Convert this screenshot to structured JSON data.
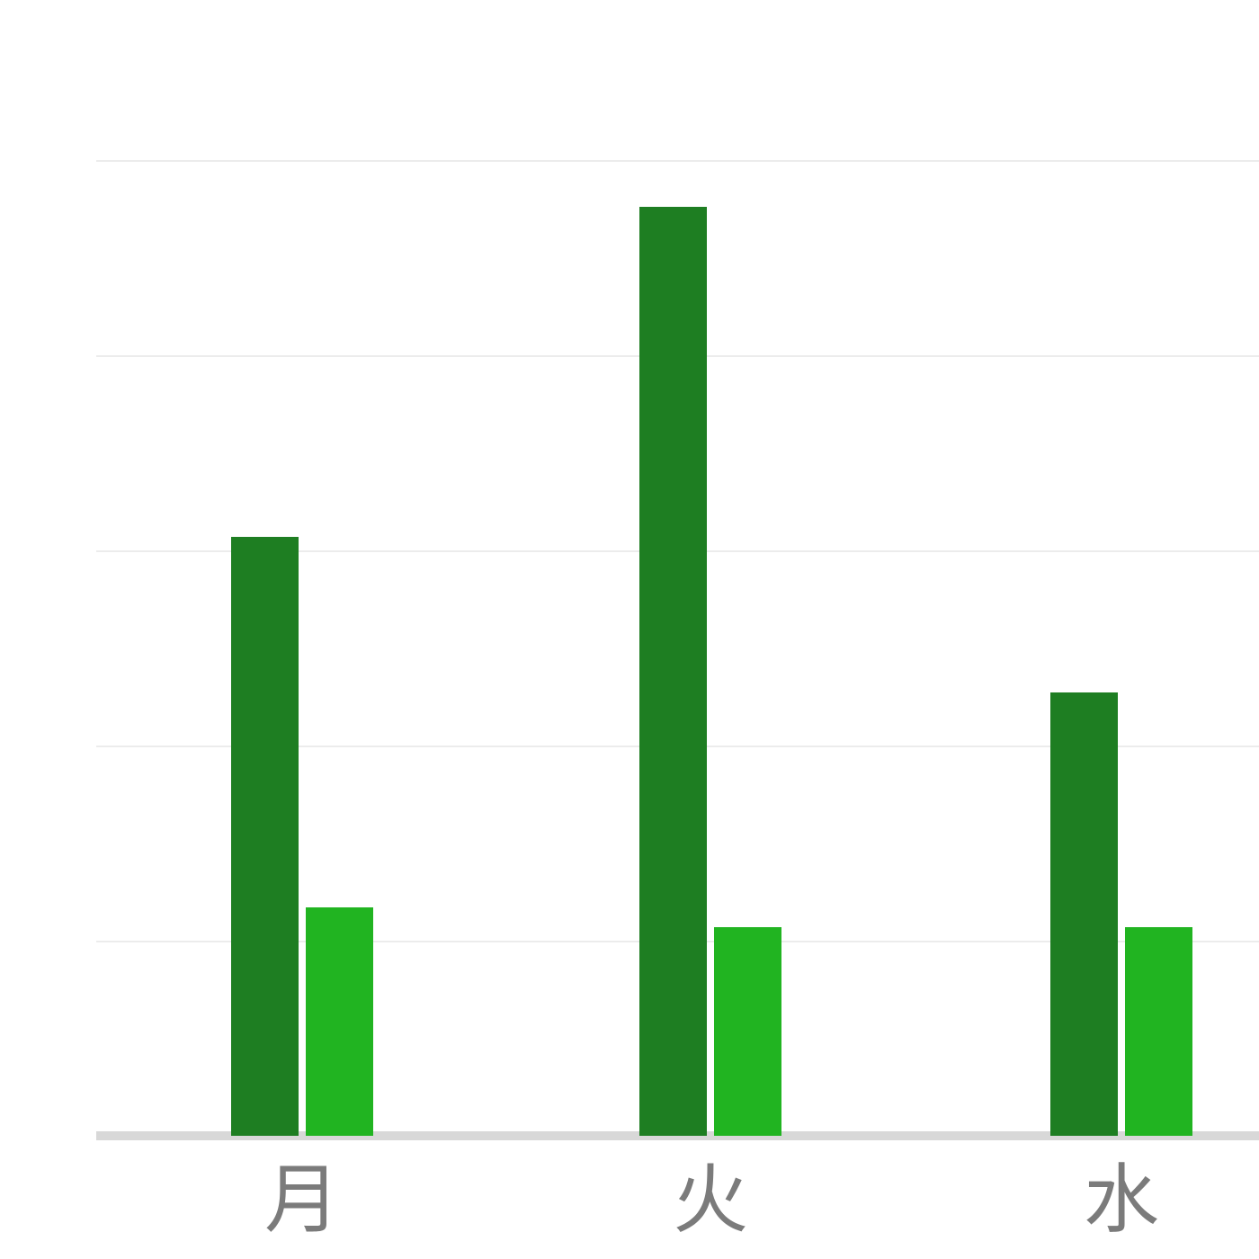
{
  "chart_data": {
    "type": "bar",
    "title": "",
    "xlabel": "",
    "ylabel": "",
    "categories": [
      "月",
      "火",
      "水"
    ],
    "series": [
      {
        "name": "series-1-dark-green",
        "color": "#1e7e22",
        "values": [
          3.07,
          4.76,
          2.27
        ]
      },
      {
        "name": "series-2-light-green",
        "color": "#21b421",
        "values": [
          1.17,
          1.07,
          1.07
        ]
      }
    ],
    "y_unit": "gridline-steps",
    "y_tick_labels_visible": false,
    "gridline_values": [
      1,
      2,
      3,
      4,
      5
    ],
    "ylim": [
      0,
      5.2
    ],
    "grid": true,
    "legend": "none",
    "view": "cropped-column-chart",
    "colors": {
      "background": "#ffffff",
      "gridline": "#ececec",
      "axis_line": "#d8d8d8",
      "tick_label": "#7b7b7b"
    }
  }
}
